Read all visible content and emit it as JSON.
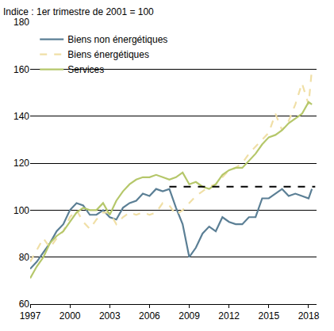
{
  "chart_data": {
    "type": "line",
    "y_label": "Indice : 1er trimestre de 2001 = 100",
    "x": [
      1997,
      1997.5,
      1998,
      1998.5,
      1999,
      1999.5,
      2000,
      2000.5,
      2001,
      2001.5,
      2002,
      2002.5,
      2003,
      2003.5,
      2004,
      2004.5,
      2005,
      2005.5,
      2006,
      2006.5,
      2007,
      2007.5,
      2008,
      2008.5,
      2009,
      2009.5,
      2010,
      2010.5,
      2011,
      2011.5,
      2012,
      2012.5,
      2013,
      2013.5,
      2014,
      2014.5,
      2015,
      2015.5,
      2016,
      2016.5,
      2017,
      2017.5,
      2018,
      2018.25
    ],
    "series": [
      {
        "name": "Biens non énergétiques",
        "color": "#5b7f95",
        "line_style": "solid",
        "values": [
          75,
          78,
          82,
          86,
          91,
          94,
          100,
          103,
          102,
          98,
          98,
          100,
          97,
          96,
          101,
          103,
          104,
          107,
          106,
          109,
          108,
          109,
          101,
          94,
          80,
          84,
          90,
          93,
          91,
          97,
          95,
          94,
          94,
          97,
          97,
          105,
          105,
          107,
          109,
          106,
          107,
          106,
          105,
          109
        ]
      },
      {
        "name": "Biens énergétiques",
        "color": "#f0dfa6",
        "line_style": "dashed",
        "values": [
          78,
          83,
          88,
          84,
          88,
          91,
          97,
          100,
          95,
          92,
          96,
          99,
          99,
          94,
          97,
          99,
          98,
          99,
          98,
          99,
          103,
          102,
          98,
          100,
          103,
          106,
          108,
          110,
          111,
          114,
          117,
          118,
          120,
          124,
          127,
          130,
          133,
          141,
          134,
          138,
          145,
          154,
          145,
          160
        ]
      },
      {
        "name": "Services",
        "color": "#b5c76a",
        "line_style": "solid",
        "values": [
          71,
          76,
          80,
          86,
          89,
          91,
          95,
          99,
          101,
          100,
          100,
          103,
          98,
          104,
          108,
          111,
          113,
          114,
          114,
          115,
          114,
          113,
          114,
          116,
          111,
          112,
          110,
          109,
          111,
          115,
          117,
          118,
          118,
          121,
          124,
          128,
          131,
          132,
          134,
          137,
          139,
          141,
          146,
          145
        ]
      }
    ],
    "reference_line": {
      "x": [
        2007.5,
        2018.5
      ],
      "y": 110,
      "color": "#000000",
      "line_style": "dashed"
    },
    "xlim": [
      1997,
      2018.6
    ],
    "xticks": [
      1997,
      2000,
      2003,
      2006,
      2009,
      2012,
      2015,
      2018
    ],
    "ylim": [
      60,
      180
    ],
    "yticks": [
      60,
      80,
      100,
      120,
      140,
      160,
      180
    ],
    "grid": true,
    "legend": "upper left"
  }
}
